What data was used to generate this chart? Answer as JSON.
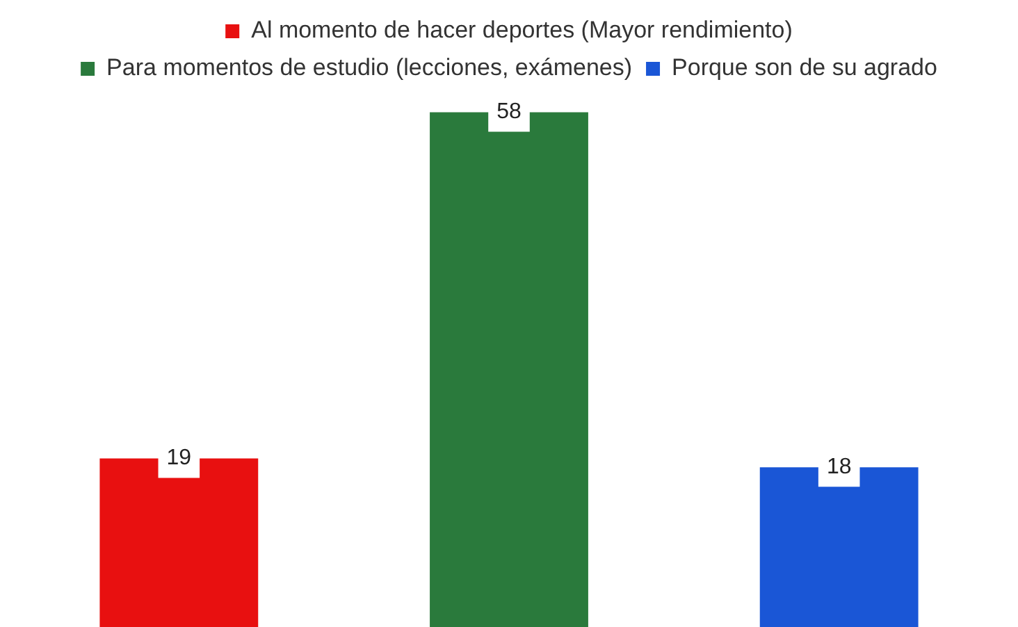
{
  "chart_data": {
    "type": "bar",
    "categories": [
      null,
      null,
      null
    ],
    "series": [
      {
        "name": "Al momento de hacer deportes (Mayor rendimiento)",
        "color": "#e81010",
        "values": [
          19,
          null,
          null
        ]
      },
      {
        "name": "Para momentos de estudio (lecciones, exámenes)",
        "color": "#2a7a3c",
        "values": [
          null,
          58,
          null
        ]
      },
      {
        "name": "Porque son de su agrado",
        "color": "#1a56d6",
        "values": [
          null,
          null,
          18
        ]
      }
    ],
    "stacked": true,
    "data_labels": true,
    "legend": "top",
    "grid": false
  }
}
